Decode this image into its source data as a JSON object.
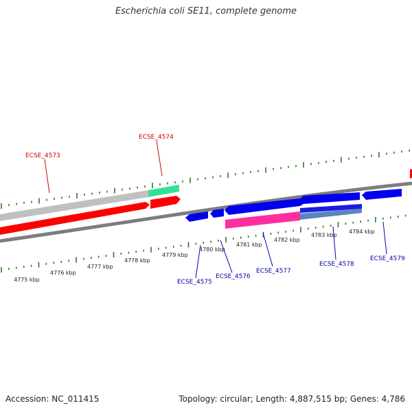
{
  "title": "Escherichia coli SE11, complete genome",
  "footer": {
    "accession": "Accession: NC_011415",
    "summary": "Topology: circular; Length: 4,887,515 bp; Genes: 4,786"
  },
  "scale": {
    "ticks": [
      "4775 kbp",
      "4776 kbp",
      "4777 kbp",
      "4778 kbp",
      "4779 kbp",
      "4780 kbp",
      "4781 kbp",
      "4782 kbp",
      "4783 kbp",
      "4784 kbp"
    ]
  },
  "colors": {
    "forward_gene": "#ff0000",
    "reverse_gene": "#0000ee",
    "forward_label": "#cc0000",
    "reverse_label": "#0000aa",
    "tick": "#2a7a1e",
    "backbone": "#808080",
    "gray_feature": "#c0c0c0",
    "green_feature": "#33e098",
    "pink_feature": "#ff2e9e",
    "steel_feature": "#5a86c0"
  },
  "genes": {
    "ecse_4573": "ECSE_4573",
    "ecse_4574": "ECSE_4574",
    "ecse_4575": "ECSE_4575",
    "ecse_4576": "ECSE_4576",
    "ecse_4577": "ECSE_4577",
    "ecse_4578": "ECSE_4578",
    "ecse_4579": "ECSE_4579"
  }
}
